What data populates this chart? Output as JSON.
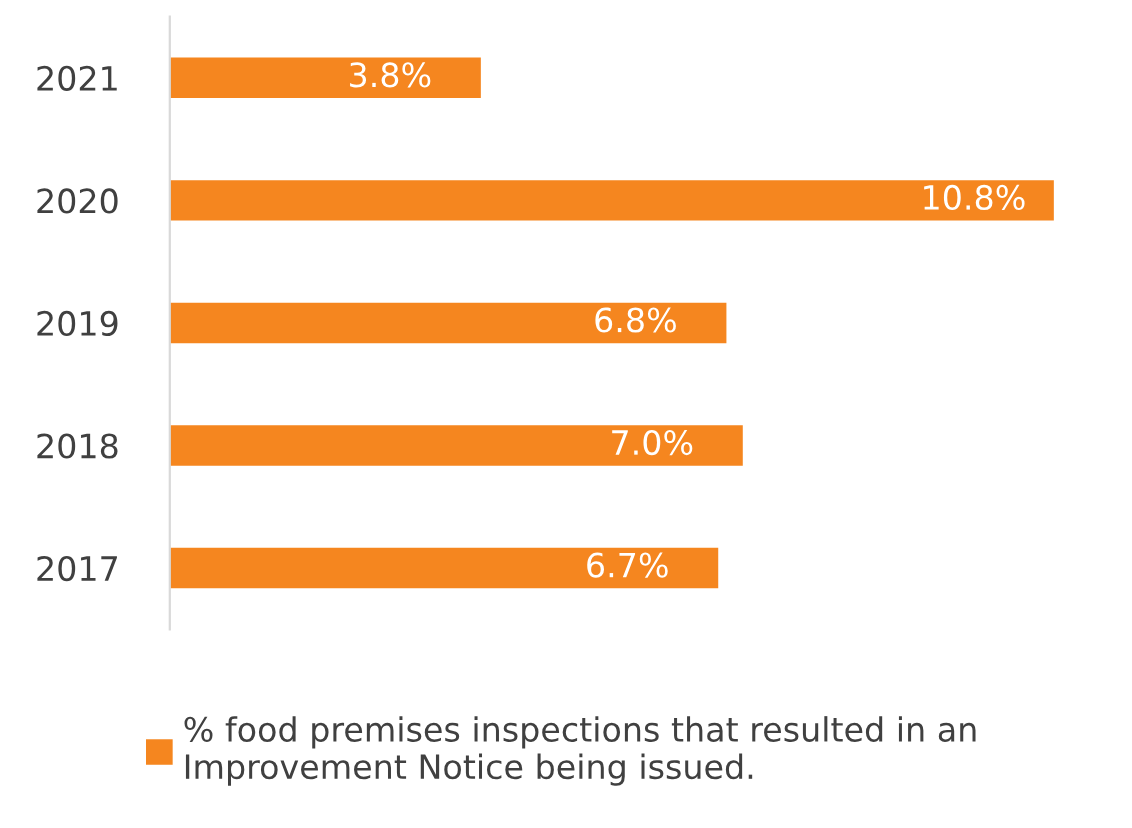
{
  "chart_data": {
    "type": "bar",
    "orientation": "horizontal",
    "categories": [
      "2021",
      "2020",
      "2019",
      "2018",
      "2017"
    ],
    "series": [
      {
        "name": "% food premises inspections that resulted in an\nImprovement Notice being issued.",
        "color": "#f5861f",
        "values": [
          3.8,
          10.8,
          6.8,
          7.0,
          6.7
        ],
        "value_labels": [
          "3.8%",
          "10.8%",
          "6.8%",
          "7.0%",
          "6.7%"
        ]
      }
    ],
    "legend": "bottom",
    "grid": false
  }
}
